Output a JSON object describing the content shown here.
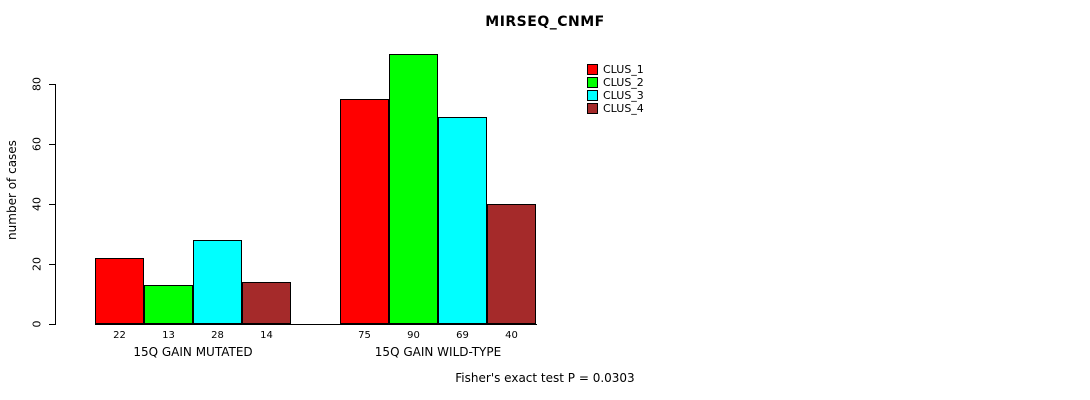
{
  "title": "MIRSEQ_CNMF",
  "footer": "Fisher's exact test P = 0.0303",
  "chart_data": {
    "type": "bar",
    "title": "MIRSEQ_CNMF",
    "ylabel": "number of cases",
    "xlabel": "",
    "groups": [
      "15Q GAIN MUTATED",
      "15Q GAIN WILD-TYPE"
    ],
    "series": [
      {
        "name": "CLUS_1",
        "color": "#FF0000",
        "values": [
          22,
          75
        ]
      },
      {
        "name": "CLUS_2",
        "color": "#00FF00",
        "values": [
          13,
          90
        ]
      },
      {
        "name": "CLUS_3",
        "color": "#00FFFF",
        "values": [
          28,
          69
        ]
      },
      {
        "name": "CLUS_4",
        "color": "#A52A2A",
        "values": [
          14,
          40
        ]
      }
    ],
    "yticks": [
      0,
      20,
      40,
      60,
      80
    ],
    "ylim": [
      0,
      90
    ],
    "grid": false,
    "legend_position": "top-right",
    "annotation": "Fisher's exact test P = 0.0303"
  }
}
